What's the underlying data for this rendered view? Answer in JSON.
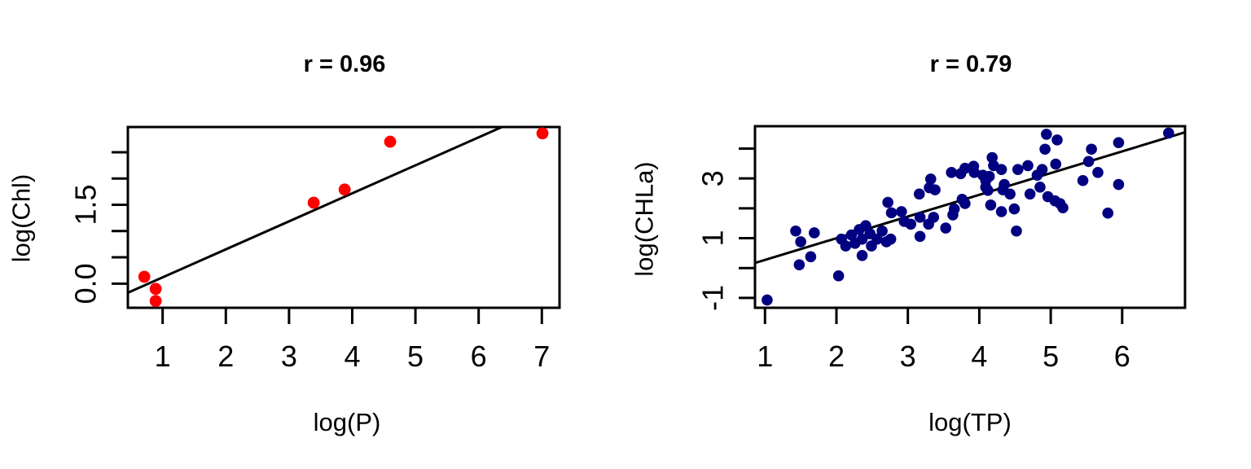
{
  "figure": {
    "background": "#FFFFFF",
    "text_color": "#000000"
  },
  "chart_data": [
    {
      "type": "scatter",
      "title": "r = 0.96",
      "xlabel": "log(P)",
      "ylabel": "log(Chl)",
      "point_color": "#FF0000",
      "line_color": "#000000",
      "grid": false,
      "legend": null,
      "xlim": [
        0.45,
        7.28
      ],
      "ylim": [
        -0.46,
        2.98
      ],
      "x_ticks": {
        "values": [
          1,
          2,
          3,
          4,
          5,
          6,
          7
        ],
        "labels": [
          "1",
          "2",
          "3",
          "4",
          "5",
          "6",
          "7"
        ]
      },
      "y_ticks": {
        "values": [
          0,
          0.5,
          1,
          1.5,
          2,
          2.5
        ],
        "labels": [
          "0.0",
          "",
          "",
          "1.5",
          "",
          ""
        ]
      },
      "points": [
        [
          0.71,
          0.13
        ],
        [
          0.89,
          -0.1
        ],
        [
          0.89,
          -0.33
        ],
        [
          3.39,
          1.54
        ],
        [
          3.88,
          1.79
        ],
        [
          4.6,
          2.7
        ],
        [
          7.01,
          2.86
        ]
      ],
      "fit_line": {
        "slope": 0.533,
        "intercept": -0.414
      }
    },
    {
      "type": "scatter",
      "title": "r = 0.79",
      "xlabel": "log(TP)",
      "ylabel": "log(CHLa)",
      "point_color": "#000080",
      "line_color": "#000000",
      "grid": false,
      "legend": null,
      "xlim": [
        0.86,
        6.88
      ],
      "ylim": [
        -1.33,
        4.75
      ],
      "x_ticks": {
        "values": [
          1,
          2,
          3,
          4,
          5,
          6
        ],
        "labels": [
          "1",
          "2",
          "3",
          "4",
          "5",
          "6"
        ]
      },
      "y_ticks": {
        "values": [
          -1,
          0,
          1,
          2,
          3,
          4
        ],
        "labels": [
          "-1",
          "",
          "1",
          "",
          "3",
          ""
        ]
      },
      "points": [
        [
          1.03,
          -1.07
        ],
        [
          1.43,
          1.24
        ],
        [
          1.48,
          0.11
        ],
        [
          1.5,
          0.88
        ],
        [
          1.64,
          0.38
        ],
        [
          1.69,
          1.18
        ],
        [
          2.03,
          -0.26
        ],
        [
          2.07,
          0.97
        ],
        [
          2.13,
          0.74
        ],
        [
          2.21,
          1.11
        ],
        [
          2.26,
          0.83
        ],
        [
          2.32,
          1.29
        ],
        [
          2.36,
          0.97
        ],
        [
          2.36,
          0.42
        ],
        [
          2.41,
          1.42
        ],
        [
          2.47,
          1.15
        ],
        [
          2.49,
          0.74
        ],
        [
          2.57,
          0.97
        ],
        [
          2.64,
          1.24
        ],
        [
          2.7,
          0.88
        ],
        [
          2.72,
          2.2
        ],
        [
          2.76,
          0.97
        ],
        [
          2.77,
          1.85
        ],
        [
          2.91,
          1.89
        ],
        [
          2.95,
          1.56
        ],
        [
          3.04,
          1.47
        ],
        [
          3.16,
          2.48
        ],
        [
          3.17,
          1.7
        ],
        [
          3.17,
          1.06
        ],
        [
          3.29,
          1.47
        ],
        [
          3.3,
          2.69
        ],
        [
          3.32,
          2.98
        ],
        [
          3.36,
          1.7
        ],
        [
          3.38,
          2.62
        ],
        [
          3.53,
          1.34
        ],
        [
          3.61,
          3.2
        ],
        [
          3.63,
          1.78
        ],
        [
          3.65,
          1.98
        ],
        [
          3.74,
          3.16
        ],
        [
          3.76,
          2.3
        ],
        [
          3.8,
          3.34
        ],
        [
          3.8,
          2.16
        ],
        [
          3.92,
          3.41
        ],
        [
          3.93,
          3.2
        ],
        [
          4.05,
          3.11
        ],
        [
          4.09,
          2.93
        ],
        [
          4.09,
          2.71
        ],
        [
          4.12,
          2.6
        ],
        [
          4.14,
          3.07
        ],
        [
          4.16,
          2.11
        ],
        [
          4.18,
          3.7
        ],
        [
          4.2,
          3.43
        ],
        [
          4.31,
          3.3
        ],
        [
          4.31,
          1.89
        ],
        [
          4.33,
          2.62
        ],
        [
          4.35,
          2.8
        ],
        [
          4.43,
          2.48
        ],
        [
          4.49,
          1.98
        ],
        [
          4.52,
          1.24
        ],
        [
          4.54,
          3.3
        ],
        [
          4.68,
          3.43
        ],
        [
          4.71,
          2.48
        ],
        [
          4.81,
          3.11
        ],
        [
          4.85,
          2.71
        ],
        [
          4.88,
          3.3
        ],
        [
          4.92,
          3.98
        ],
        [
          4.94,
          4.48
        ],
        [
          4.96,
          2.39
        ],
        [
          5.06,
          2.25
        ],
        [
          5.07,
          3.48
        ],
        [
          5.09,
          4.29
        ],
        [
          5.13,
          2.16
        ],
        [
          5.17,
          2.02
        ],
        [
          5.45,
          2.93
        ],
        [
          5.53,
          3.57
        ],
        [
          5.57,
          3.98
        ],
        [
          5.66,
          3.2
        ],
        [
          5.8,
          1.84
        ],
        [
          5.95,
          4.2
        ],
        [
          5.95,
          2.8
        ],
        [
          6.65,
          4.52
        ]
      ],
      "fit_line": {
        "slope": 0.727,
        "intercept": -0.455
      }
    }
  ]
}
